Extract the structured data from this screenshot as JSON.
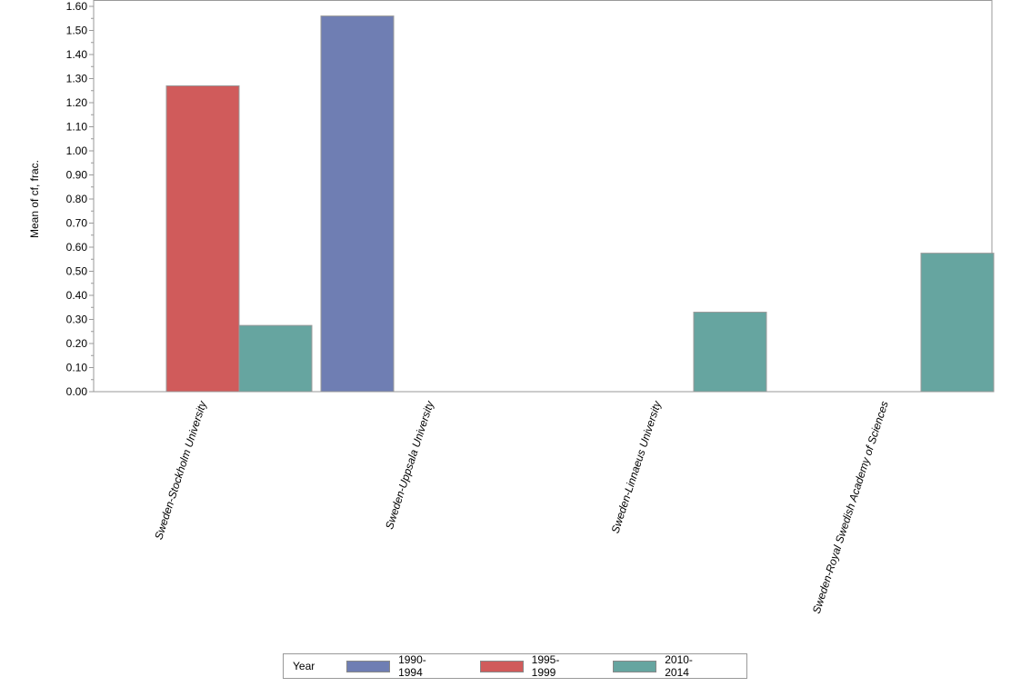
{
  "chart_data": {
    "type": "bar",
    "title": "",
    "xlabel": "",
    "ylabel": "Mean of cf, frac.",
    "ylim": [
      0,
      1.6
    ],
    "yticks": [
      "0.00",
      "0.10",
      "0.20",
      "0.30",
      "0.40",
      "0.50",
      "0.60",
      "0.70",
      "0.80",
      "0.90",
      "1.00",
      "1.10",
      "1.20",
      "1.30",
      "1.40",
      "1.50",
      "1.60"
    ],
    "categories": [
      "Sweden-Stockholm University",
      "Sweden-Uppsala University",
      "Sweden-Linnaeus University",
      "Sweden-Royal Swedish Academy of Sciences"
    ],
    "series": [
      {
        "name": "1990-1994",
        "color": "#6f7eb3",
        "values": [
          null,
          1.56,
          null,
          null
        ]
      },
      {
        "name": "1995-1999",
        "color": "#d05b5b",
        "values": [
          1.27,
          null,
          null,
          null
        ]
      },
      {
        "name": "2010-2014",
        "color": "#66a5a0",
        "values": [
          0.275,
          null,
          0.33,
          0.575
        ]
      }
    ],
    "legend": {
      "title": "Year",
      "placement": "bottom"
    }
  }
}
